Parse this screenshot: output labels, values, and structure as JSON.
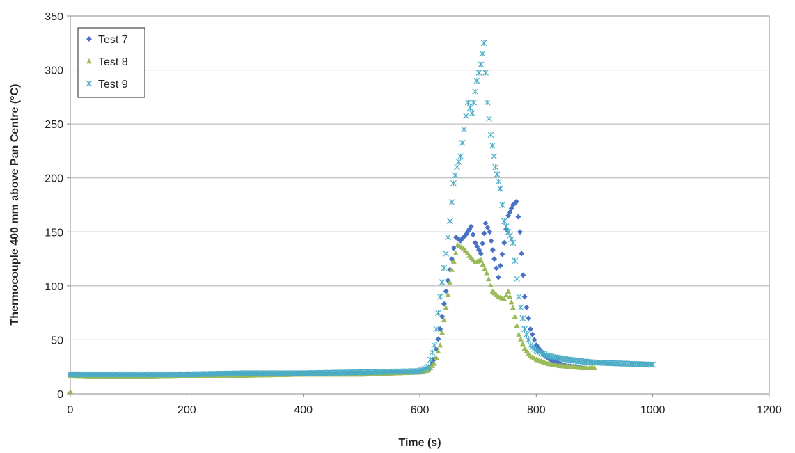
{
  "chart_data": {
    "type": "scatter",
    "xlabel": "Time (s)",
    "ylabel": "Thermocouple 400 mm above Pan Centre (°C)",
    "xlim": [
      0,
      1200
    ],
    "ylim": [
      0,
      350
    ],
    "xticks": [
      0,
      200,
      400,
      600,
      800,
      1000,
      1200
    ],
    "yticks": [
      0,
      50,
      100,
      150,
      200,
      250,
      300,
      350
    ],
    "x_tick_labels": [
      "0",
      "200",
      "400",
      "600",
      "800",
      "1000",
      "1200"
    ],
    "y_tick_labels": [
      "0",
      "50",
      "100",
      "150",
      "200",
      "250",
      "300",
      "350"
    ],
    "grid": "horizontal",
    "legend": "top-left",
    "series": [
      {
        "name": "Test 7",
        "marker": "diamond",
        "color": "#4a72c4",
        "points": [
          [
            0,
            18
          ],
          [
            50,
            17
          ],
          [
            100,
            17
          ],
          [
            200,
            18
          ],
          [
            300,
            18
          ],
          [
            400,
            19
          ],
          [
            500,
            19
          ],
          [
            600,
            20
          ],
          [
            615,
            22
          ],
          [
            625,
            32
          ],
          [
            635,
            60
          ],
          [
            645,
            95
          ],
          [
            655,
            125
          ],
          [
            662,
            145
          ],
          [
            670,
            142
          ],
          [
            680,
            148
          ],
          [
            688,
            155
          ],
          [
            695,
            140
          ],
          [
            705,
            130
          ],
          [
            713,
            158
          ],
          [
            720,
            150
          ],
          [
            728,
            125
          ],
          [
            735,
            108
          ],
          [
            745,
            140
          ],
          [
            752,
            165
          ],
          [
            760,
            175
          ],
          [
            766,
            178
          ],
          [
            772,
            150
          ],
          [
            780,
            90
          ],
          [
            790,
            60
          ],
          [
            800,
            45
          ],
          [
            815,
            35
          ],
          [
            830,
            30
          ],
          [
            850,
            26
          ],
          [
            870,
            25
          ],
          [
            880,
            24
          ]
        ]
      },
      {
        "name": "Test 8",
        "marker": "triangle",
        "color": "#9bbb59",
        "points": [
          [
            0,
            17
          ],
          [
            50,
            16
          ],
          [
            100,
            16
          ],
          [
            200,
            17
          ],
          [
            300,
            17
          ],
          [
            400,
            18
          ],
          [
            500,
            18
          ],
          [
            600,
            20
          ],
          [
            615,
            22
          ],
          [
            625,
            28
          ],
          [
            635,
            45
          ],
          [
            645,
            80
          ],
          [
            655,
            115
          ],
          [
            665,
            138
          ],
          [
            675,
            135
          ],
          [
            685,
            128
          ],
          [
            695,
            122
          ],
          [
            705,
            124
          ],
          [
            715,
            112
          ],
          [
            725,
            95
          ],
          [
            735,
            90
          ],
          [
            745,
            88
          ],
          [
            752,
            95
          ],
          [
            760,
            80
          ],
          [
            770,
            55
          ],
          [
            780,
            42
          ],
          [
            790,
            35
          ],
          [
            800,
            32
          ],
          [
            820,
            28
          ],
          [
            840,
            26
          ],
          [
            860,
            25
          ],
          [
            880,
            24
          ],
          [
            900,
            24
          ]
        ]
      },
      {
        "name": "Test 9",
        "marker": "cross",
        "color": "#4bacc6",
        "points": [
          [
            0,
            18
          ],
          [
            50,
            18
          ],
          [
            100,
            18
          ],
          [
            200,
            18
          ],
          [
            300,
            19
          ],
          [
            400,
            19
          ],
          [
            500,
            20
          ],
          [
            600,
            21
          ],
          [
            615,
            25
          ],
          [
            625,
            45
          ],
          [
            635,
            90
          ],
          [
            645,
            130
          ],
          [
            652,
            160
          ],
          [
            658,
            195
          ],
          [
            664,
            210
          ],
          [
            670,
            220
          ],
          [
            676,
            245
          ],
          [
            683,
            270
          ],
          [
            690,
            260
          ],
          [
            698,
            290
          ],
          [
            705,
            305
          ],
          [
            710,
            325
          ],
          [
            716,
            270
          ],
          [
            722,
            240
          ],
          [
            730,
            210
          ],
          [
            738,
            190
          ],
          [
            745,
            160
          ],
          [
            752,
            150
          ],
          [
            760,
            140
          ],
          [
            770,
            90
          ],
          [
            780,
            60
          ],
          [
            790,
            45
          ],
          [
            800,
            40
          ],
          [
            820,
            35
          ],
          [
            850,
            32
          ],
          [
            880,
            30
          ],
          [
            900,
            29
          ],
          [
            950,
            28
          ],
          [
            1000,
            27
          ]
        ]
      }
    ]
  }
}
